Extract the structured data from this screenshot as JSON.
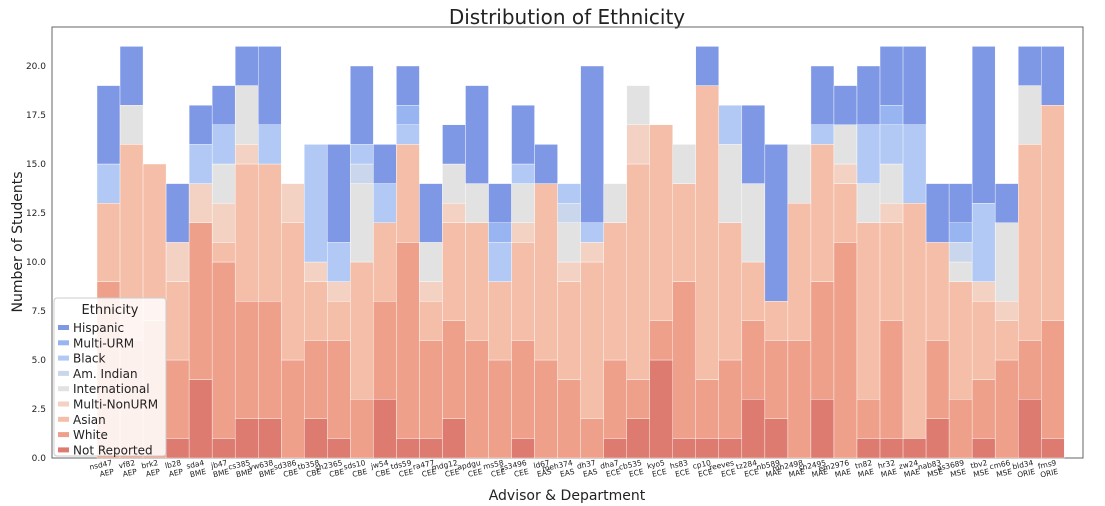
{
  "chart_data": {
    "type": "bar",
    "stacked": true,
    "title": "Distribution of Ethnicity",
    "xlabel": "Advisor & Department",
    "ylabel": "Number of Students",
    "ylim": [
      0,
      22
    ],
    "yticks": [
      "0.0",
      "2.5",
      "5.0",
      "7.5",
      "10.0",
      "12.5",
      "15.0",
      "17.5",
      "20.0"
    ],
    "grid": false,
    "legend": {
      "title": "Ethnicity",
      "placement": "bottom-left"
    },
    "categories": [
      [
        "nsd47",
        "AEP"
      ],
      [
        "vf82",
        "AEP"
      ],
      [
        "brk2",
        "AEP"
      ],
      [
        "lb28",
        "AEP"
      ],
      [
        "sda4",
        "BME"
      ],
      [
        "jb47",
        "BME"
      ],
      [
        "cs385",
        "BME"
      ],
      [
        "yw638",
        "BME"
      ],
      [
        "sd386",
        "CBE"
      ],
      [
        "tb358",
        "CBE"
      ],
      [
        "sh2365",
        "CBE"
      ],
      [
        "sds10",
        "CBE"
      ],
      [
        "jw54",
        "CBE"
      ],
      [
        "tds59",
        "CEE"
      ],
      [
        "ra477",
        "CEE"
      ],
      [
        "mdg12",
        "CEE"
      ],
      [
        "apdgu",
        "CEE"
      ],
      [
        "ms58",
        "CEE"
      ],
      [
        "ss3496",
        "CEE"
      ],
      [
        "ld67",
        "EAS"
      ],
      [
        "meh374",
        "EAS"
      ],
      [
        "dh37",
        "EAS"
      ],
      [
        "dha7",
        "ECE"
      ],
      [
        "cb535",
        "ECE"
      ],
      [
        "kyo5",
        "ECE"
      ],
      [
        "hs83",
        "ECE"
      ],
      [
        "cp10",
        "ECE"
      ],
      [
        "reeves",
        "ECE"
      ],
      [
        "tz284",
        "ECE"
      ],
      [
        "nb589",
        "MAE"
      ],
      [
        "mh2498",
        "MAE"
      ],
      [
        "sh2495",
        "MAE"
      ],
      [
        "em2976",
        "MAE"
      ],
      [
        "tn82",
        "MAE"
      ],
      [
        "hr32",
        "MAE"
      ],
      [
        "zw24",
        "MAE"
      ],
      [
        "nab83",
        "MSE"
      ],
      [
        "as3689",
        "MSE"
      ],
      [
        "tbv2",
        "MSE"
      ],
      [
        "cm66",
        "MSE"
      ],
      [
        "bld34",
        "ORIE"
      ],
      [
        "fms9",
        "ORIE"
      ]
    ],
    "series": [
      {
        "name": "Not Reported",
        "color": "#de7b70",
        "values": [
          0,
          0,
          0,
          1,
          4,
          1,
          2,
          2,
          0,
          2,
          1,
          0,
          3,
          1,
          1,
          2,
          0,
          0,
          1,
          0,
          0,
          0,
          1,
          2,
          5,
          1,
          1,
          1,
          3,
          2,
          0,
          3,
          0,
          1,
          1,
          1,
          2,
          0,
          1,
          0,
          3,
          1
        ]
      },
      {
        "name": "White",
        "color": "#eea08a",
        "values": [
          9,
          6,
          7,
          4,
          8,
          9,
          6,
          6,
          5,
          4,
          5,
          3,
          5,
          10,
          5,
          5,
          6,
          5,
          5,
          5,
          4,
          2,
          4,
          2,
          2,
          8,
          3,
          4,
          4,
          4,
          6,
          6,
          11,
          2,
          6,
          0,
          4,
          3,
          3,
          5,
          3,
          6
        ]
      },
      {
        "name": "Asian",
        "color": "#f5bea8",
        "values": [
          4,
          10,
          8,
          4,
          0,
          1,
          7,
          7,
          7,
          3,
          2,
          7,
          4,
          5,
          2,
          5,
          6,
          4,
          5,
          9,
          5,
          8,
          7,
          11,
          10,
          5,
          15,
          7,
          3,
          2,
          7,
          7,
          3,
          9,
          5,
          12,
          5,
          6,
          4,
          2,
          10,
          11
        ]
      },
      {
        "name": "Multi-NonURM",
        "color": "#f3d2c4",
        "values": [
          0,
          0,
          0,
          2,
          2,
          2,
          1,
          0,
          2,
          1,
          1,
          0,
          0,
          0,
          1,
          1,
          0,
          0,
          1,
          0,
          1,
          1,
          0,
          2,
          0,
          0,
          0,
          0,
          0,
          0,
          0,
          0,
          1,
          0,
          1,
          0,
          0,
          0,
          1,
          1,
          0,
          0
        ]
      },
      {
        "name": "International",
        "color": "#e2e2e2",
        "values": [
          0,
          2,
          0,
          0,
          0,
          2,
          3,
          0,
          0,
          0,
          0,
          4,
          0,
          0,
          2,
          2,
          2,
          0,
          2,
          0,
          2,
          0,
          2,
          2,
          0,
          2,
          0,
          4,
          4,
          0,
          3,
          0,
          2,
          2,
          2,
          0,
          0,
          1,
          0,
          4,
          3,
          0
        ]
      },
      {
        "name": "Am. Indian",
        "color": "#cad6ec",
        "values": [
          0,
          0,
          0,
          0,
          0,
          0,
          0,
          0,
          0,
          0,
          0,
          1,
          0,
          0,
          0,
          0,
          0,
          0,
          0,
          0,
          1,
          0,
          0,
          0,
          0,
          0,
          0,
          0,
          0,
          0,
          0,
          0,
          0,
          0,
          0,
          0,
          0,
          1,
          0,
          0,
          0,
          0
        ]
      },
      {
        "name": "Black",
        "color": "#b1c9f4",
        "values": [
          2,
          0,
          0,
          0,
          2,
          2,
          0,
          2,
          0,
          6,
          2,
          1,
          2,
          1,
          0,
          0,
          0,
          2,
          1,
          0,
          1,
          1,
          0,
          0,
          0,
          0,
          0,
          2,
          0,
          0,
          0,
          1,
          0,
          3,
          2,
          4,
          0,
          0,
          4,
          0,
          0,
          0
        ]
      },
      {
        "name": "Multi-URM",
        "color": "#98b5f2",
        "values": [
          0,
          0,
          0,
          0,
          0,
          0,
          0,
          0,
          0,
          0,
          0,
          0,
          0,
          1,
          0,
          0,
          0,
          1,
          0,
          0,
          0,
          0,
          0,
          0,
          0,
          0,
          0,
          0,
          0,
          0,
          0,
          0,
          0,
          0,
          1,
          0,
          0,
          1,
          0,
          0,
          0,
          0
        ]
      },
      {
        "name": "Hispanic",
        "color": "#7f98e6",
        "values": [
          4,
          3,
          0,
          3,
          2,
          2,
          2,
          4,
          0,
          0,
          5,
          4,
          2,
          2,
          3,
          2,
          5,
          2,
          3,
          2,
          0,
          8,
          0,
          0,
          0,
          0,
          2,
          0,
          4,
          8,
          0,
          3,
          2,
          3,
          3,
          4,
          3,
          2,
          8,
          2,
          2,
          3
        ]
      }
    ]
  }
}
